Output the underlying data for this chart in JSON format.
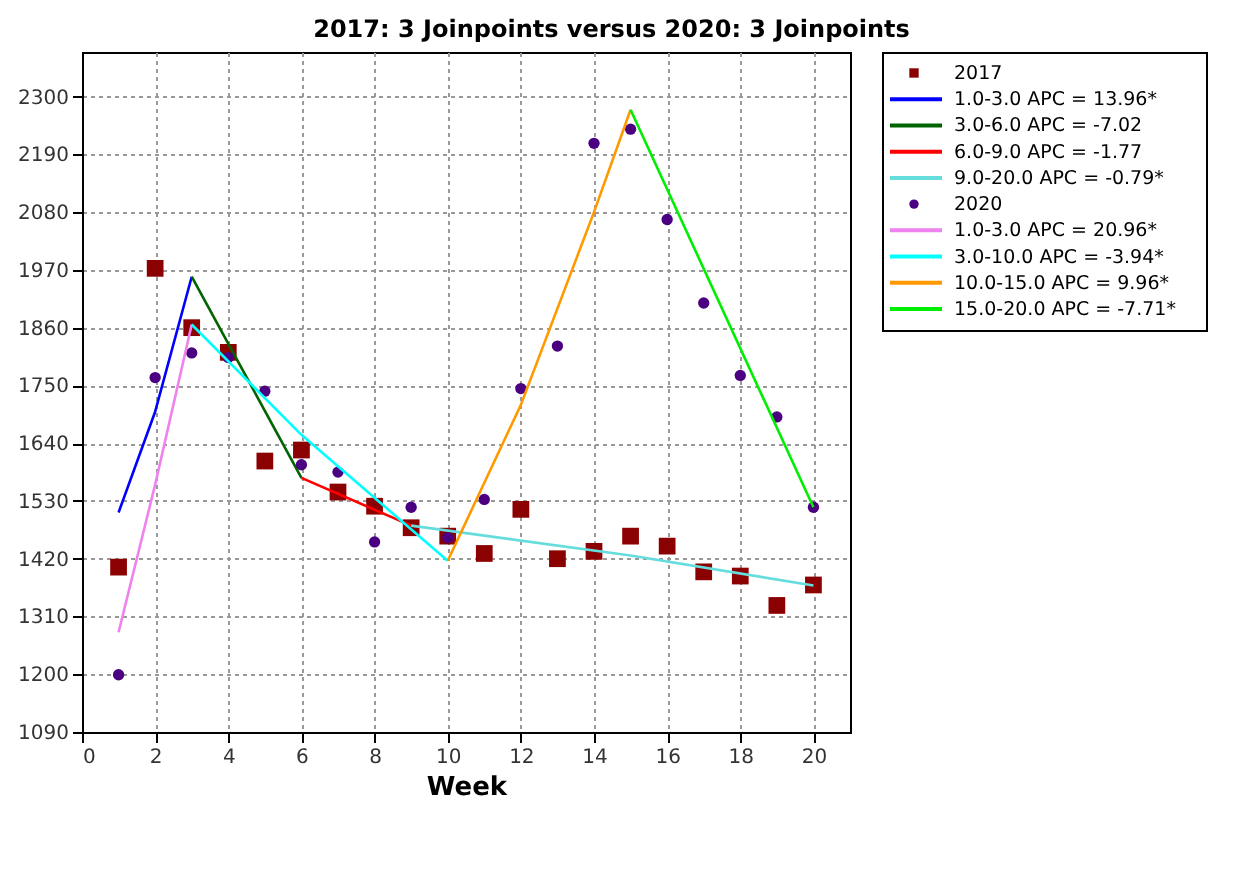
{
  "chart_data": {
    "type": "scatter",
    "title": "2017: 3 Joinpoints  versus  2020: 3 Joinpoints",
    "xlabel": "Week",
    "xlim": [
      0,
      21
    ],
    "xticks": [
      0,
      2,
      4,
      6,
      8,
      10,
      12,
      14,
      16,
      18,
      20
    ],
    "ylim": [
      1090,
      2385
    ],
    "yticks": [
      1090,
      1200,
      1310,
      1420,
      1530,
      1640,
      1750,
      1860,
      1970,
      2080,
      2190,
      2300
    ],
    "grid": true,
    "legend": "right",
    "line_style": "solid",
    "series": [
      {
        "name": "2017",
        "marker": "square",
        "color": "#8b0000",
        "x": [
          1,
          2,
          3,
          4,
          5,
          6,
          7,
          8,
          9,
          10,
          11,
          12,
          13,
          14,
          15,
          16,
          17,
          18,
          19,
          20
        ],
        "values": [
          1404,
          1973,
          1860,
          1813,
          1606,
          1627,
          1547,
          1520,
          1479,
          1463,
          1430,
          1514,
          1420,
          1434,
          1463,
          1444,
          1395,
          1387,
          1331,
          1370
        ]
      },
      {
        "name": "1.0-3.0 APC  = 13.96*",
        "type": "line",
        "color": "#0000ff",
        "x": [
          1,
          2,
          3
        ],
        "values": [
          1508,
          1700,
          1957
        ]
      },
      {
        "name": "3.0-6.0 APC  = -7.02",
        "type": "line",
        "color": "#006400",
        "x": [
          3,
          6
        ],
        "values": [
          1957,
          1574
        ]
      },
      {
        "name": "6.0-9.0 APC  = -1.77",
        "type": "line",
        "color": "#ff0000",
        "x": [
          6,
          9
        ],
        "values": [
          1574,
          1483
        ]
      },
      {
        "name": "9.0-20.0 APC  = -0.79*",
        "type": "line",
        "color": "#66dddd",
        "x": [
          9,
          15,
          20
        ],
        "values": [
          1483,
          1426,
          1369
        ]
      },
      {
        "name": "2020",
        "marker": "circle",
        "color": "#4b0082",
        "x": [
          1,
          2,
          3,
          4,
          5,
          6,
          7,
          8,
          9,
          10,
          11,
          12,
          13,
          14,
          15,
          16,
          17,
          18,
          19,
          20
        ],
        "values": [
          1199,
          1765,
          1812,
          1803,
          1739,
          1599,
          1585,
          1452,
          1518,
          1460,
          1533,
          1744,
          1825,
          2211,
          2238,
          2066,
          1907,
          1769,
          1690,
          1518
        ]
      },
      {
        "name": "1.0-3.0 APC  = 20.96*",
        "type": "line",
        "color": "#ee82ee",
        "x": [
          1,
          2,
          3
        ],
        "values": [
          1280,
          1561,
          1866
        ]
      },
      {
        "name": "3.0-10.0 APC  = -3.94*",
        "type": "line",
        "color": "#00ffff",
        "x": [
          3,
          6,
          10
        ],
        "values": [
          1866,
          1656,
          1416
        ]
      },
      {
        "name": "10.0-15.0 APC  =  9.96*",
        "type": "line",
        "color": "#ff9900",
        "x": [
          10,
          12,
          14,
          15
        ],
        "values": [
          1416,
          1713,
          2080,
          2275
        ]
      },
      {
        "name": "15.0-20.0 APC  = -7.71*",
        "type": "line",
        "color": "#00ee00",
        "x": [
          15,
          20
        ],
        "values": [
          2275,
          1518
        ]
      }
    ]
  }
}
